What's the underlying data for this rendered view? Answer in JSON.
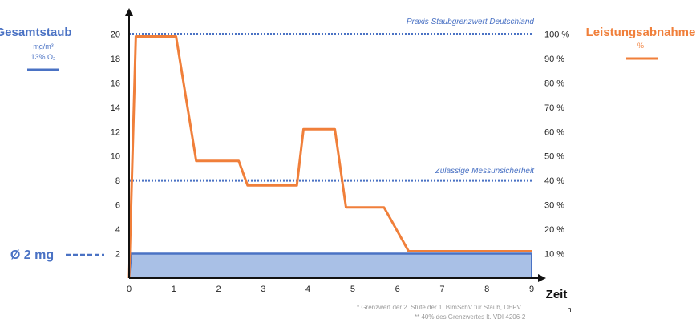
{
  "colors": {
    "dust": "#4a72c4",
    "dust_fill": "#a9c0e6",
    "power": "#f07f3a",
    "axis": "#111111",
    "note": "#999999"
  },
  "left_legend": {
    "title": "Gesamtstaub",
    "unit": "mg/m³",
    "reference": "13% O₂"
  },
  "right_legend": {
    "title": "Leistungsabnahme",
    "unit": "%"
  },
  "average": {
    "label": "Ø 2 mg"
  },
  "x_axis": {
    "label": "Zeit",
    "unit": "h"
  },
  "footnotes": [
    "*   Grenzwert der 2. Stufe der 1. BImSchV für Staub, DEPV",
    "**  40% des Grenzwertes lt. VDI 4206-2"
  ],
  "reference_lines": [
    {
      "label": "Praxis Staubgrenzwert Deutschland",
      "y_left": 20
    },
    {
      "label": "Zulässige Messunsicherheit",
      "y_left": 8
    }
  ],
  "chart_data": {
    "type": "line",
    "title": "",
    "xlabel": "Zeit",
    "xunit": "h",
    "ylabel_left": "Gesamtstaub mg/m³ 13% O₂",
    "ylabel_right": "Leistungsabnahme %",
    "xlim": [
      0,
      9
    ],
    "ylim_left": [
      0,
      22
    ],
    "ylim_right": [
      0,
      110
    ],
    "x_ticks": [
      "0",
      "1",
      "2",
      "3",
      "4",
      "5",
      "6",
      "7",
      "8",
      "9"
    ],
    "y_left_ticks": [
      "2",
      "4",
      "6",
      "8",
      "10",
      "12",
      "14",
      "16",
      "18",
      "20"
    ],
    "y_right_ticks": [
      "10 %",
      "20 %",
      "30 %",
      "40 %",
      "50 %",
      "60 %",
      "70 %",
      "80 %",
      "90 %",
      "100 %"
    ],
    "series": [
      {
        "name": "Gesamtstaub",
        "axis": "left",
        "kind": "area",
        "x": [
          0,
          0.05,
          9
        ],
        "y": [
          0,
          2,
          2
        ]
      },
      {
        "name": "Leistungsabnahme",
        "axis": "right",
        "kind": "line",
        "x": [
          0,
          0.15,
          1.05,
          1.5,
          2.45,
          2.65,
          3.75,
          3.9,
          4.6,
          4.85,
          5.7,
          6.25,
          9
        ],
        "y": [
          0,
          99,
          99,
          48,
          48,
          38,
          38,
          61,
          61,
          29,
          29,
          11,
          11
        ]
      }
    ]
  }
}
